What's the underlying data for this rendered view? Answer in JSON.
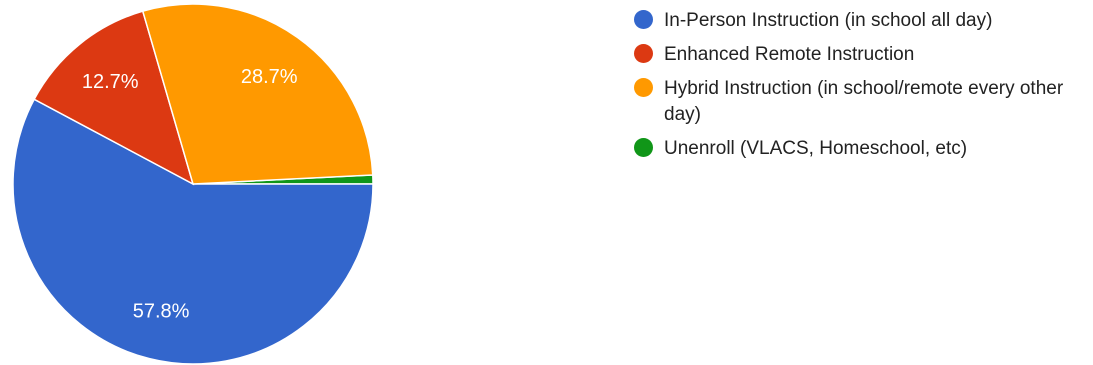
{
  "chart_data": {
    "type": "pie",
    "slices": [
      {
        "label": "In-Person Instruction (in school all day)",
        "value": 57.8,
        "value_label": "57.8%",
        "color": "#3366cc"
      },
      {
        "label": "Enhanced Remote Instruction",
        "value": 12.7,
        "value_label": "12.7%",
        "color": "#dc3912"
      },
      {
        "label": "Hybrid Instruction (in school/remote every other day)",
        "value": 28.7,
        "value_label": "28.7%",
        "color": "#ff9900"
      },
      {
        "label": "Unenroll (VLACS, Homeschool, etc)",
        "value": 0.8,
        "value_label": "",
        "color": "#109618"
      }
    ],
    "legend_position": "right"
  }
}
